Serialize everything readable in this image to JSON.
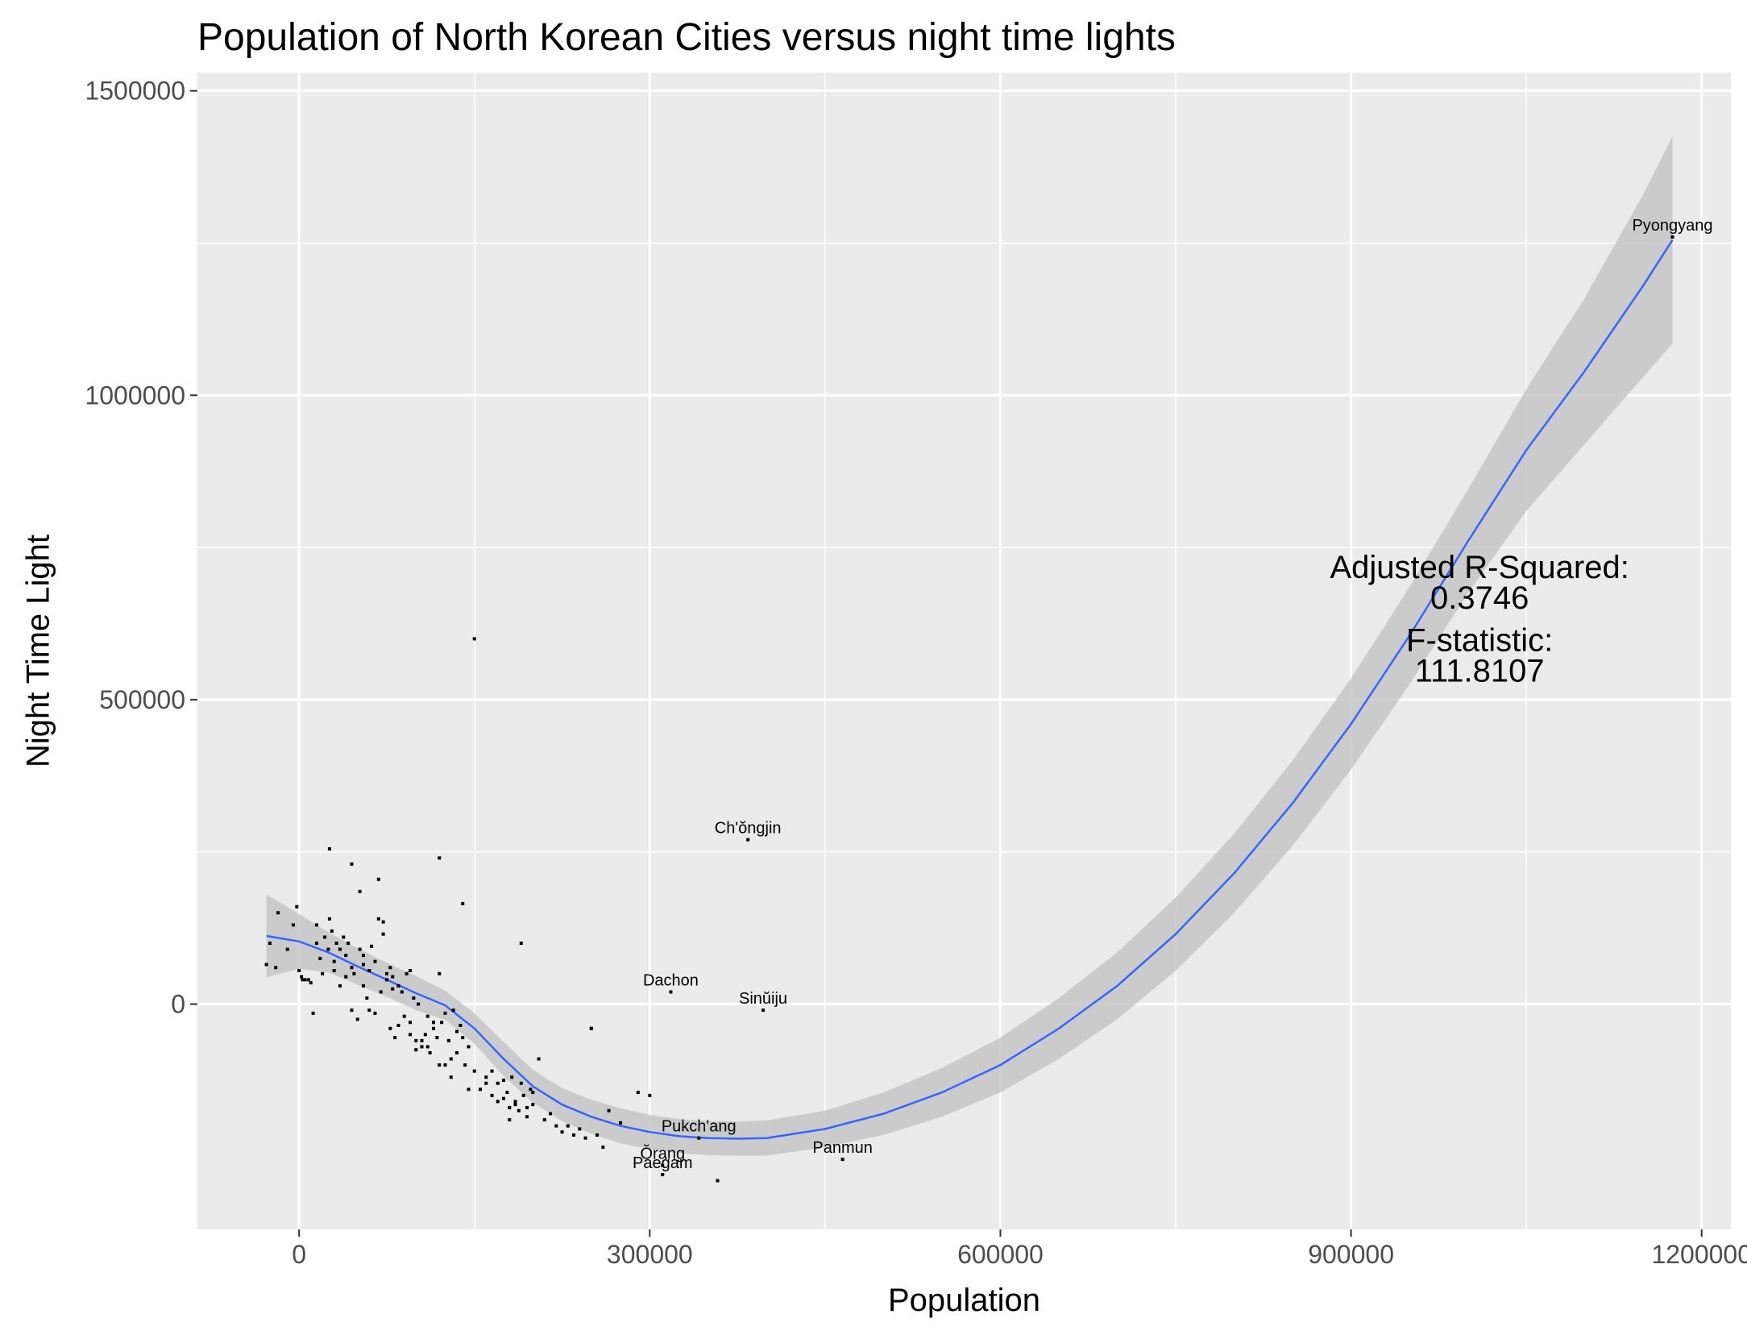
{
  "chart_data": {
    "type": "scatter",
    "title": "Population of North Korean Cities versus night time lights",
    "xlabel": "Population",
    "ylabel": "Night Time Light",
    "xlim": [
      -87000,
      1225000
    ],
    "ylim": [
      -370000,
      1530000
    ],
    "x_ticks": [
      0,
      300000,
      600000,
      900000,
      1200000
    ],
    "x_tick_labels": [
      "0",
      "300000",
      "600000",
      "900000",
      "1200000"
    ],
    "y_ticks": [
      0,
      500000,
      1000000,
      1500000
    ],
    "y_tick_labels": [
      "0",
      "500000",
      "1000000",
      "1500000"
    ],
    "grid": true,
    "panel_background": "#ebebeb",
    "fit_line_color": "#3366ff",
    "ribbon_color": "#c6c6c6",
    "point_color": "#000000",
    "series": [
      {
        "x": [
          -28000,
          -25000,
          -20000,
          -18000,
          -10000,
          -5000,
          -2000,
          0,
          2000,
          5000,
          8000,
          10000,
          12000,
          15000,
          18000,
          20000,
          22000,
          25000,
          26000,
          28000,
          30000,
          32000,
          35000,
          38000,
          40000,
          42000,
          45000,
          47000,
          50000,
          52000,
          55000,
          58000,
          60000,
          62000,
          65000,
          68000,
          70000,
          72000,
          75000,
          78000,
          80000,
          82000,
          85000,
          88000,
          90000,
          92000,
          95000,
          98000,
          100000,
          102000,
          105000,
          108000,
          110000,
          112000,
          115000,
          118000,
          120000,
          122000,
          125000,
          128000,
          130000,
          132000,
          135000,
          138000,
          140000,
          142000,
          145000,
          150000,
          155000,
          160000,
          165000,
          170000,
          175000,
          178000,
          180000,
          182000,
          185000,
          188000,
          190000,
          192000,
          195000,
          198000,
          200000,
          205000,
          210000,
          215000,
          220000,
          225000,
          230000,
          235000,
          240000,
          245000,
          250000,
          255000,
          260000,
          265000,
          275000,
          290000,
          300000,
          3000,
          26000,
          45000,
          68000,
          120000,
          150000,
          140000,
          190000,
          250000,
          120000,
          72000,
          78000,
          60000,
          80000,
          52000,
          45000,
          100000,
          110000,
          125000,
          130000,
          145000,
          160000,
          170000,
          180000,
          200000,
          30000,
          40000,
          55000,
          65000,
          85000,
          95000,
          105000,
          115000,
          135000,
          165000,
          175000,
          185000,
          195000,
          15000,
          35000,
          55000,
          75000,
          95000,
          115000
        ],
        "y": [
          65000,
          100000,
          60000,
          150000,
          90000,
          130000,
          160000,
          55000,
          45000,
          40000,
          40000,
          35000,
          -15000,
          130000,
          75000,
          50000,
          110000,
          90000,
          140000,
          120000,
          55000,
          100000,
          30000,
          110000,
          80000,
          100000,
          60000,
          50000,
          -25000,
          185000,
          30000,
          10000,
          -10000,
          95000,
          70000,
          140000,
          20000,
          115000,
          50000,
          -40000,
          45000,
          -55000,
          30000,
          20000,
          -20000,
          50000,
          -30000,
          10000,
          -75000,
          0,
          -70000,
          -50000,
          -20000,
          -80000,
          -30000,
          -55000,
          -100000,
          -30000,
          -15000,
          -60000,
          -90000,
          -10000,
          -45000,
          -35000,
          -55000,
          -100000,
          -70000,
          -110000,
          -140000,
          -120000,
          -150000,
          -130000,
          -155000,
          -145000,
          -170000,
          -120000,
          -160000,
          -175000,
          -130000,
          -150000,
          -185000,
          -140000,
          -165000,
          -90000,
          -190000,
          -180000,
          -200000,
          -210000,
          -200000,
          -215000,
          -205000,
          -220000,
          -40000,
          -215000,
          -235000,
          -175000,
          -195000,
          -145000,
          -150000,
          40000,
          255000,
          230000,
          205000,
          240000,
          600000,
          165000,
          100000,
          -40000,
          50000,
          135000,
          60000,
          55000,
          25000,
          90000,
          -10000,
          -60000,
          -70000,
          -100000,
          -120000,
          -140000,
          -130000,
          -160000,
          -190000,
          -145000,
          70000,
          45000,
          80000,
          -15000,
          -35000,
          -50000,
          -60000,
          -30000,
          -80000,
          -110000,
          -125000,
          -165000,
          -170000,
          100000,
          90000,
          65000,
          40000,
          55000,
          -40000
        ],
        "name": ""
      }
    ],
    "labeled_points": [
      {
        "label": "Pyongyang",
        "x": 1175000,
        "y": 1260000
      },
      {
        "label": "Ch'ŏngjin",
        "x": 384000,
        "y": 270000
      },
      {
        "label": "Dachon",
        "x": 318000,
        "y": 20000
      },
      {
        "label": "Sinŭiju",
        "x": 397000,
        "y": -10000
      },
      {
        "label": "Pukch'ang",
        "x": 342000,
        "y": -220000
      },
      {
        "label": "Ŏrang",
        "x": 311000,
        "y": -265000
      },
      {
        "label": "Paegam",
        "x": 311000,
        "y": -280000
      },
      {
        "label": "Panmun",
        "x": 465000,
        "y": -255000
      },
      {
        "label": "",
        "x": 358000,
        "y": -290000
      }
    ],
    "fit": {
      "method": "loess",
      "x": [
        -28000,
        0,
        25000,
        50000,
        75000,
        100000,
        125000,
        150000,
        175000,
        200000,
        225000,
        250000,
        275000,
        300000,
        325000,
        350000,
        375000,
        400000,
        450000,
        500000,
        550000,
        600000,
        650000,
        700000,
        750000,
        800000,
        850000,
        900000,
        950000,
        1000000,
        1050000,
        1100000,
        1150000,
        1175000
      ],
      "y": [
        112000,
        103000,
        85000,
        62000,
        40000,
        18000,
        -2000,
        -40000,
        -90000,
        -135000,
        -165000,
        -185000,
        -200000,
        -210000,
        -217000,
        -220000,
        -221000,
        -220000,
        -205000,
        -180000,
        -145000,
        -100000,
        -40000,
        30000,
        115000,
        215000,
        330000,
        460000,
        605000,
        760000,
        910000,
        1040000,
        1180000,
        1255000
      ],
      "upper": [
        180000,
        148000,
        118000,
        92000,
        68000,
        46000,
        22000,
        -15000,
        -62000,
        -108000,
        -138000,
        -157000,
        -171000,
        -182000,
        -189000,
        -192000,
        -193000,
        -191000,
        -175000,
        -145000,
        -105000,
        -55000,
        10000,
        85000,
        175000,
        280000,
        400000,
        535000,
        685000,
        845000,
        1010000,
        1160000,
        1330000,
        1425000
      ],
      "lower": [
        44000,
        58000,
        52000,
        32000,
        12000,
        -10000,
        -26000,
        -65000,
        -118000,
        -162000,
        -192000,
        -213000,
        -229000,
        -238000,
        -245000,
        -248000,
        -249000,
        -249000,
        -235000,
        -215000,
        -185000,
        -145000,
        -90000,
        -25000,
        55000,
        150000,
        260000,
        385000,
        525000,
        675000,
        810000,
        920000,
        1030000,
        1085000
      ]
    },
    "annotations": [
      {
        "lines": [
          "Adjusted R-Squared:",
          "0.3746"
        ],
        "x": 1010000,
        "y": 700000
      },
      {
        "lines": [
          "F-statistic:",
          "111.8107"
        ],
        "x": 1010000,
        "y": 580000
      }
    ]
  }
}
